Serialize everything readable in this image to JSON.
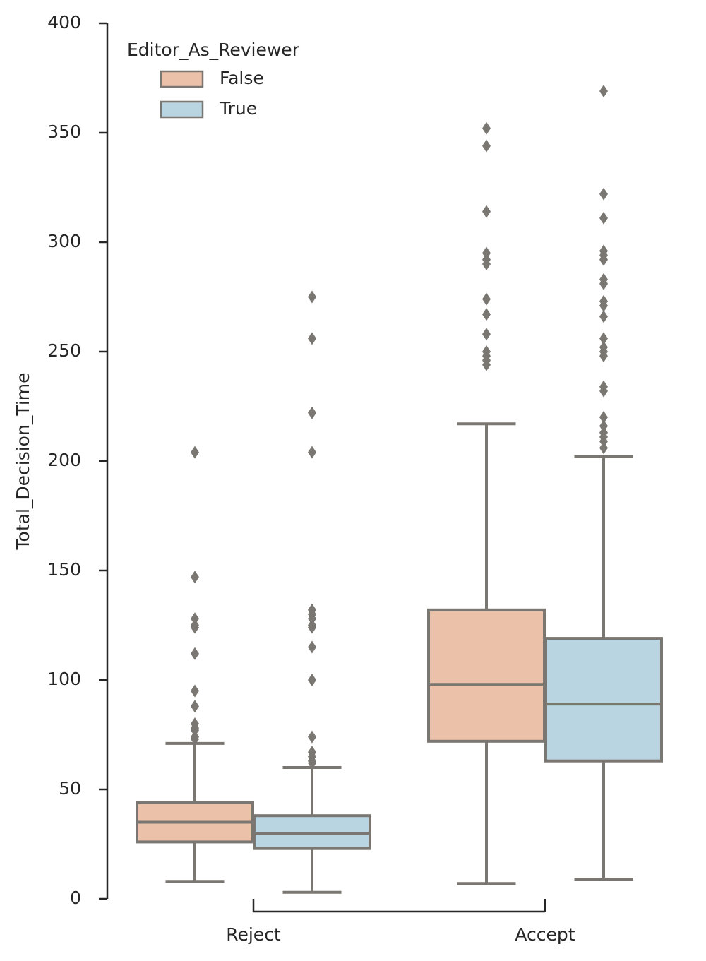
{
  "chart_data": {
    "type": "box",
    "y_label": "Total_Decision_Time",
    "categories": [
      "Reject",
      "Accept"
    ],
    "legend_title": "Editor_As_Reviewer",
    "legend_loc": "upper left",
    "ylim": [
      0,
      400
    ],
    "yticks": [
      0,
      50,
      100,
      150,
      200,
      250,
      300,
      350,
      400
    ],
    "line_color": "#7a7671",
    "series": [
      {
        "name": "False",
        "color": "#ecc1a9",
        "boxes": [
          {
            "whislo": 8,
            "q1": 26,
            "med": 35,
            "q3": 44,
            "whishi": 71,
            "fliers": [
              73,
              74,
              77,
              78,
              80,
              88,
              95,
              112,
              124,
              125,
              128,
              147,
              204
            ]
          },
          {
            "whislo": 7,
            "q1": 72,
            "med": 98,
            "q3": 132,
            "whishi": 217,
            "fliers": [
              244,
              246,
              248,
              250,
              258,
              267,
              274,
              290,
              292,
              295,
              314,
              344,
              352
            ]
          }
        ]
      },
      {
        "name": "True",
        "color": "#b9d5e2",
        "boxes": [
          {
            "whislo": 3,
            "q1": 23,
            "med": 30,
            "q3": 38,
            "whishi": 60,
            "fliers": [
              62,
              63,
              65,
              67,
              74,
              100,
              115,
              124,
              125,
              128,
              130,
              132,
              204,
              222,
              256,
              275
            ]
          },
          {
            "whislo": 9,
            "q1": 63,
            "med": 89,
            "q3": 119,
            "whishi": 202,
            "fliers": [
              206,
              209,
              211,
              213,
              216,
              220,
              232,
              234,
              248,
              250,
              252,
              256,
              266,
              271,
              273,
              281,
              283,
              292,
              294,
              296,
              311,
              322,
              369
            ]
          }
        ]
      }
    ]
  }
}
